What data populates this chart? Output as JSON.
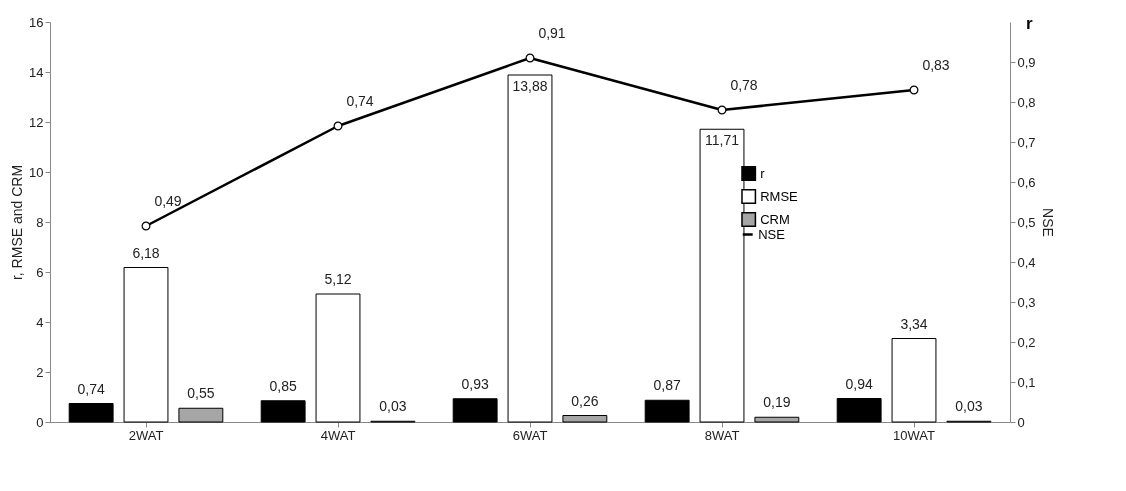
{
  "chart_data": {
    "type": "bar",
    "ylabel": "r, RMSE and CRM",
    "y2label": "NSE",
    "categories": [
      "2WAT",
      "4WAT",
      "6WAT",
      "8WAT",
      "10WAT"
    ],
    "series": [
      {
        "name": "r",
        "color": "#000000",
        "values": [
          0.74,
          0.85,
          0.93,
          0.87,
          0.94
        ],
        "value_labels": [
          "0,74",
          "0,85",
          "0,93",
          "0,87",
          "0,94"
        ]
      },
      {
        "name": "RMSE",
        "color": "#ffffff",
        "values": [
          6.18,
          5.12,
          13.88,
          11.71,
          3.34
        ],
        "value_labels": [
          "6,18",
          "5,12",
          "13,88",
          "11,71",
          "3,34"
        ]
      },
      {
        "name": "CRM",
        "color": "#a6a6a6",
        "values": [
          0.55,
          0.03,
          0.26,
          0.19,
          0.03
        ],
        "value_labels": [
          "0,55",
          "0,03",
          "0,26",
          "0,19",
          "0,03"
        ]
      },
      {
        "name": "NSE",
        "type": "line",
        "axis": "y2",
        "color": "#000000",
        "marker": "circle",
        "values": [
          0.49,
          0.74,
          0.91,
          0.78,
          0.83
        ],
        "value_labels": [
          "0,49",
          "0,74",
          "0,91",
          "0,78",
          "0,83"
        ]
      }
    ],
    "ylim": [
      0,
      16
    ],
    "yticks": [
      0,
      2,
      4,
      6,
      8,
      10,
      12,
      14,
      16
    ],
    "y2lim": [
      0,
      1
    ],
    "y2ticks": [
      0,
      {
        "value": 0.1,
        "label": "0,1"
      },
      {
        "value": 0.2,
        "label": "0,2"
      },
      {
        "value": 0.3,
        "label": "0,3"
      },
      {
        "value": 0.4,
        "label": "0,4"
      },
      {
        "value": 0.5,
        "label": "0,5"
      },
      {
        "value": 0.6,
        "label": "0,6"
      },
      {
        "value": 0.7,
        "label": "0,7"
      },
      {
        "value": 0.8,
        "label": "0,8"
      },
      {
        "value": 0.9,
        "label": "0,9"
      }
    ],
    "annotations": [
      "r"
    ],
    "legend": "right"
  }
}
